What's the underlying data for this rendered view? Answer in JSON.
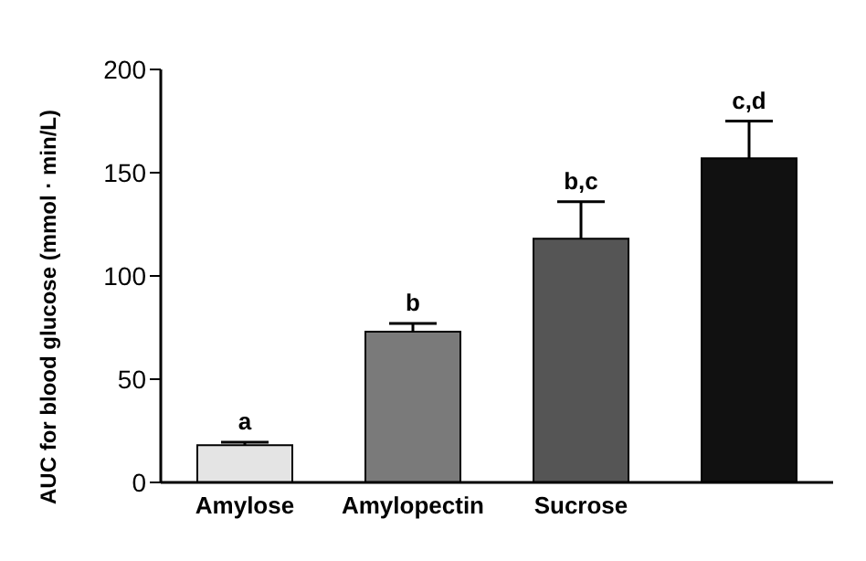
{
  "chart_data": {
    "type": "bar",
    "ylabel": "AUC for blood glucose (mmol · min/L)",
    "categories": [
      "Amylose",
      "Amylopectin",
      "Sucrose",
      null
    ],
    "values": [
      18,
      73,
      118,
      157
    ],
    "colors": [
      "#e4e4e4",
      "#7a7a7a",
      "#555555",
      "#111111"
    ],
    "errors": [
      [
        18,
        19.5
      ],
      [
        73,
        77
      ],
      [
        118,
        136
      ],
      [
        157,
        175
      ]
    ],
    "annotations": [
      "a",
      "b",
      "b,c",
      "c,d"
    ],
    "ylim": [
      0,
      200
    ],
    "yticks": [
      0,
      50,
      100,
      150,
      200
    ],
    "grid": false,
    "legend": false
  }
}
